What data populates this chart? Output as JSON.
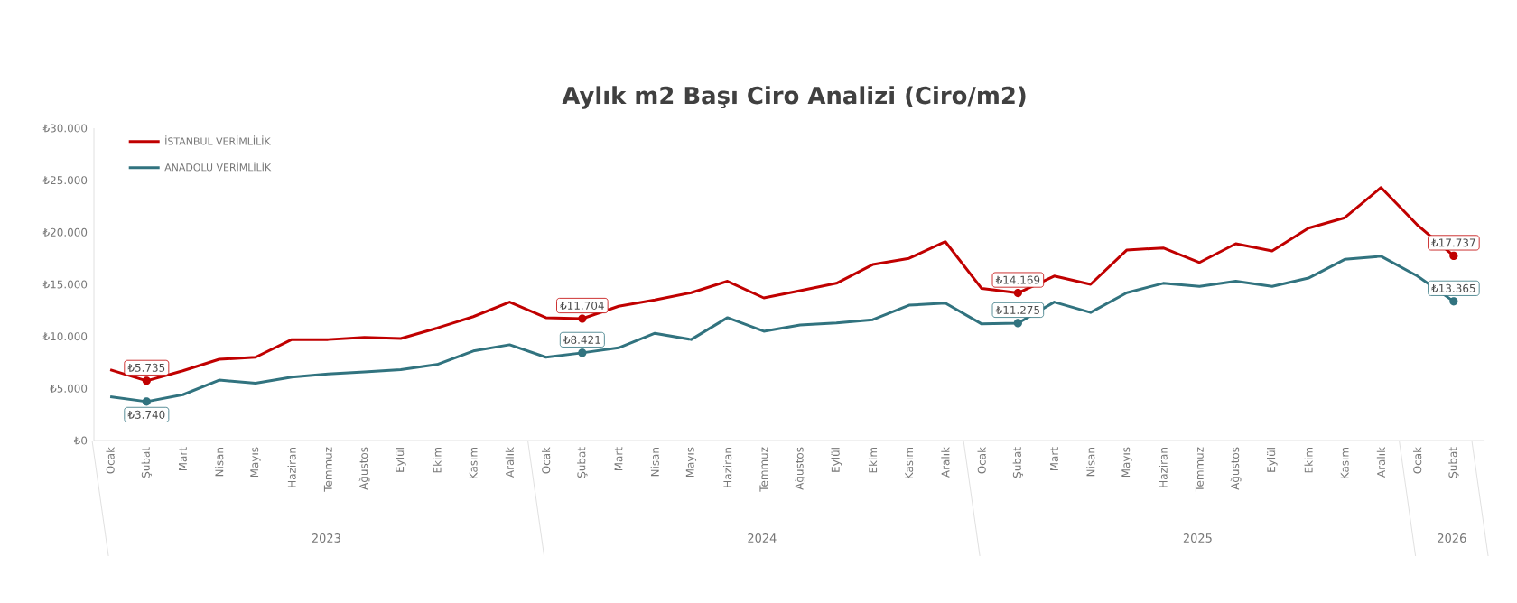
{
  "chart_data": {
    "type": "line",
    "title": "Aylık m2 Başı Ciro Analizi (Ciro/m2)",
    "categories": [
      "Ocak",
      "Şubat",
      "Mart",
      "Nisan",
      "Mayıs",
      "Haziran",
      "Temmuz",
      "Ağustos",
      "Eylül",
      "Ekim",
      "Kasım",
      "Aralık",
      "Ocak",
      "Şubat",
      "Mart",
      "Nisan",
      "Mayıs",
      "Haziran",
      "Temmuz",
      "Ağustos",
      "Eylül",
      "Ekim",
      "Kasım",
      "Aralık",
      "Ocak",
      "Şubat",
      "Mart",
      "Nisan",
      "Mayıs",
      "Haziran",
      "Temmuz",
      "Ağustos",
      "Eylül",
      "Ekim",
      "Kasım",
      "Aralık",
      "Ocak",
      "Şubat"
    ],
    "annotations": [
      "2023",
      "2024",
      "2025",
      "2026"
    ],
    "series": [
      {
        "name": "İSTANBUL VERİMLİLİK",
        "color": "#c00000",
        "values": [
          6800,
          5735,
          6700,
          7800,
          8000,
          9700,
          9700,
          9900,
          9800,
          10800,
          11900,
          13300,
          11800,
          11704,
          12900,
          13500,
          14200,
          15300,
          13700,
          14400,
          15100,
          16900,
          17500,
          19100,
          14600,
          14169,
          15800,
          15000,
          18300,
          18500,
          17100,
          18900,
          18200,
          20400,
          21400,
          24300,
          20700,
          17737
        ],
        "value_labels": [
          null,
          "₺5.735",
          null,
          null,
          null,
          null,
          null,
          null,
          null,
          null,
          null,
          null,
          null,
          "₺11.704",
          null,
          null,
          null,
          null,
          null,
          null,
          null,
          null,
          null,
          null,
          null,
          "₺14.169",
          null,
          null,
          null,
          null,
          null,
          null,
          null,
          null,
          null,
          null,
          null,
          "₺17.737"
        ]
      },
      {
        "name": "ANADOLU VERİMLİLİK",
        "color": "#31737f",
        "values": [
          4200,
          3740,
          4400,
          5800,
          5500,
          6100,
          6400,
          6600,
          6800,
          7300,
          8600,
          9200,
          8000,
          8421,
          8900,
          10300,
          9700,
          11800,
          10500,
          11100,
          11300,
          11600,
          13000,
          13200,
          11200,
          11275,
          13300,
          12300,
          14200,
          15100,
          14800,
          15300,
          14800,
          15600,
          17400,
          17700,
          15800,
          13365
        ],
        "value_labels": [
          null,
          "₺3.740",
          null,
          null,
          null,
          null,
          null,
          null,
          null,
          null,
          null,
          null,
          null,
          "₺8.421",
          null,
          null,
          null,
          null,
          null,
          null,
          null,
          null,
          null,
          null,
          null,
          "₺11.275",
          null,
          null,
          null,
          null,
          null,
          null,
          null,
          null,
          null,
          null,
          null,
          "₺13.365"
        ]
      }
    ],
    "ylim": [
      0,
      30000
    ],
    "yticks": [
      {
        "value": 0,
        "label": "₺0"
      },
      {
        "value": 5000,
        "label": "₺5.000"
      },
      {
        "value": 10000,
        "label": "₺10.000"
      },
      {
        "value": 15000,
        "label": "₺15.000"
      },
      {
        "value": 20000,
        "label": "₺20.000"
      },
      {
        "value": 25000,
        "label": "₺25.000"
      },
      {
        "value": 30000,
        "label": "₺30.000"
      }
    ],
    "legend": "top left",
    "marker": "none",
    "line_style": "solid"
  }
}
